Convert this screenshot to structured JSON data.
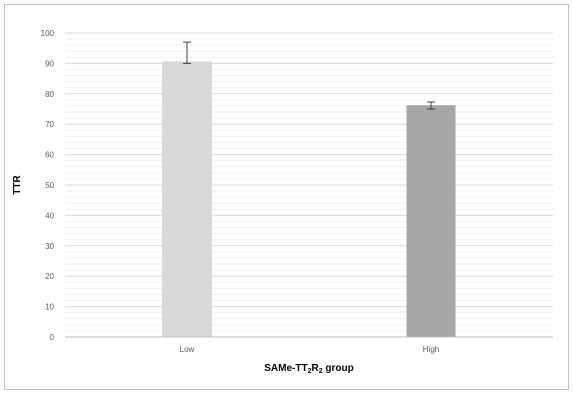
{
  "chart_data": {
    "type": "bar",
    "categories": [
      "Low",
      "High"
    ],
    "values": [
      90.5,
      76.2
    ],
    "error_bars": [
      {
        "low": 90.0,
        "high": 97.0
      },
      {
        "low": 75.0,
        "high": 77.3
      }
    ],
    "title": "",
    "xlabel": {
      "base": "SAMe-TT",
      "sub1": "2",
      "mid": "R",
      "sub2": "2",
      "tail": " group"
    },
    "ylabel": "TTR",
    "ylim": [
      0,
      100
    ],
    "yticks": [
      "0",
      "10",
      "20",
      "30",
      "40",
      "50",
      "60",
      "70",
      "80",
      "90",
      "100"
    ],
    "minor_grid_step": 2,
    "grid": true,
    "legend": "none",
    "colors": {
      "bars": [
        "#d9d9d9",
        "#a6a6a6"
      ],
      "bar_stroke": "#bfbfbf",
      "major_grid": "#d9d9d9",
      "minor_grid": "#f0f0f0",
      "error_bar": "#404040",
      "axis": "#bfbfbf"
    }
  }
}
